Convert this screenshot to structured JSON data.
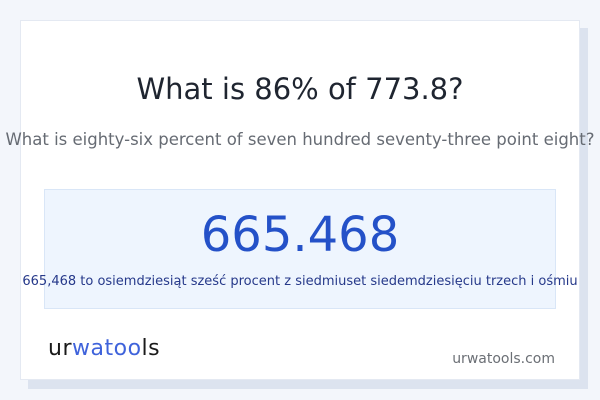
{
  "header": {
    "title": "What is 86% of 773.8?",
    "subtitle": "What is eighty-six percent of seven hundred seventy-three point eight?"
  },
  "result": {
    "value": "665.468",
    "words": "665,468 to osiemdziesiąt sześć procent z siedmiuset siedemdziesięciu trzech i ośmiu"
  },
  "footer": {
    "logo_text": "urwatools",
    "site": "urwatools.com"
  },
  "colors": {
    "accent": "#2451c8",
    "result_bg": "#eef5fe",
    "page_bg": "#f3f6fb"
  }
}
